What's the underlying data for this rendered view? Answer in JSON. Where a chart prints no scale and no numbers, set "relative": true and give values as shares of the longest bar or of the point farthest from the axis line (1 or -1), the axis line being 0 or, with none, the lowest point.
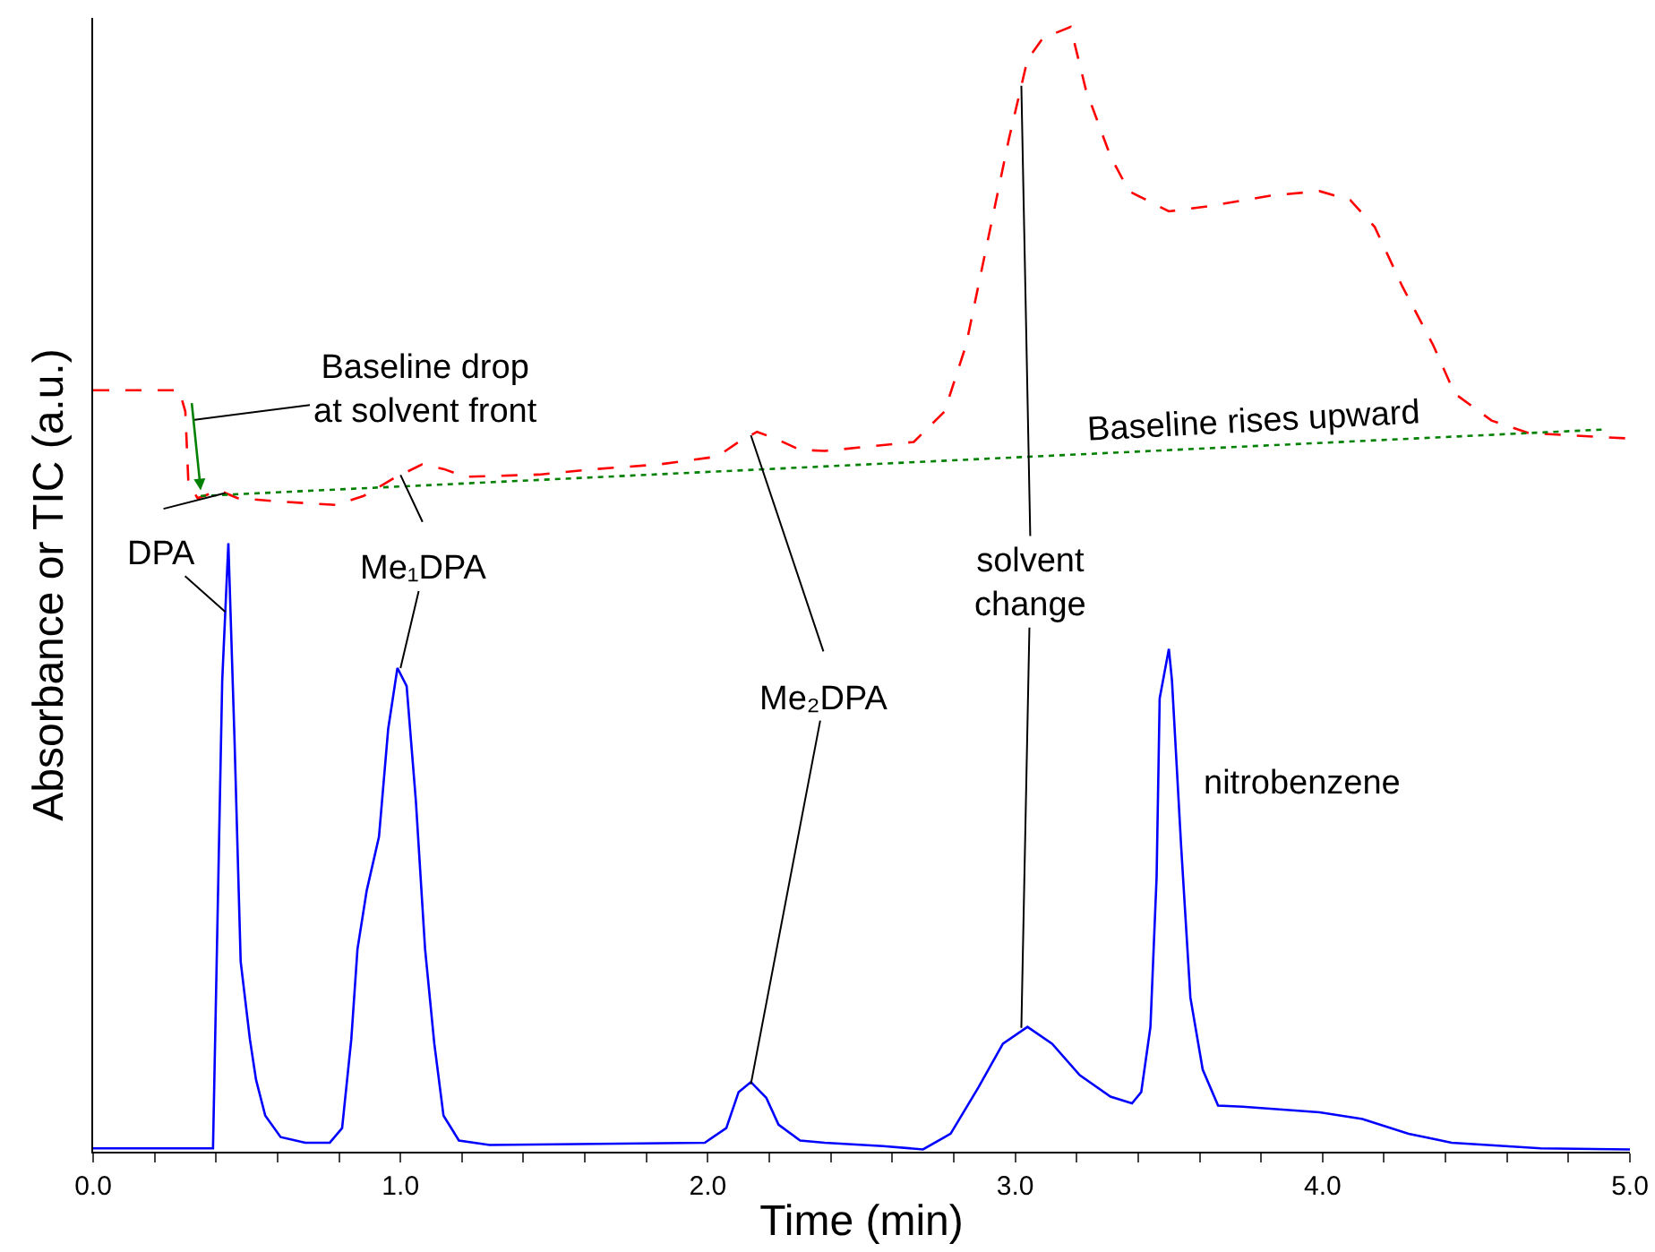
{
  "chart_data": {
    "type": "line",
    "relative": true,
    "xlabel": "Time (min)",
    "ylabel": "Absorbance or TIC (a.u.)",
    "xlim": [
      0,
      5
    ],
    "xticks": [
      {
        "value": 0,
        "label": "0.0"
      },
      {
        "value": 0.2,
        "label": null
      },
      {
        "value": 0.4,
        "label": null
      },
      {
        "value": 0.6,
        "label": null
      },
      {
        "value": 0.8,
        "label": null
      },
      {
        "value": 1,
        "label": "1.0"
      },
      {
        "value": 1.2,
        "label": null
      },
      {
        "value": 1.4,
        "label": null
      },
      {
        "value": 1.6,
        "label": null
      },
      {
        "value": 1.8,
        "label": null
      },
      {
        "value": 2,
        "label": "2.0"
      },
      {
        "value": 2.2,
        "label": null
      },
      {
        "value": 2.4,
        "label": null
      },
      {
        "value": 2.6,
        "label": null
      },
      {
        "value": 2.8,
        "label": null
      },
      {
        "value": 3,
        "label": "3.0"
      },
      {
        "value": 3.2,
        "label": null
      },
      {
        "value": 3.4,
        "label": null
      },
      {
        "value": 3.6,
        "label": null
      },
      {
        "value": 3.8,
        "label": null
      },
      {
        "value": 4,
        "label": "4.0"
      },
      {
        "value": 4.2,
        "label": null
      },
      {
        "value": 4.4,
        "label": null
      },
      {
        "value": 4.6,
        "label": null
      },
      {
        "value": 4.8,
        "label": null
      },
      {
        "value": 5,
        "label": "5.0"
      }
    ],
    "marker": "none",
    "series": [
      {
        "color": "#ff0000",
        "line_style": "dashed",
        "x": [
          0,
          0.28,
          0.3,
          0.31,
          0.34,
          0.41,
          0.47,
          0.61,
          0.79,
          0.88,
          0.98,
          1.07,
          1.14,
          1.21,
          1.45,
          1.64,
          1.84,
          2.03,
          2.1,
          2.16,
          2.22,
          2.3,
          2.38,
          2.67,
          2.77,
          2.84,
          2.9,
          2.98,
          3.04,
          3.09,
          3.18,
          3.23,
          3.31,
          3.37,
          3.5,
          3.64,
          3.83,
          3.99,
          4.09,
          4.17,
          4.26,
          4.36,
          4.43,
          4.55,
          4.67,
          5
        ],
        "values": [
          0.677,
          0.677,
          0.658,
          0.594,
          0.581,
          0.588,
          0.581,
          0.578,
          0.575,
          0.583,
          0.599,
          0.611,
          0.607,
          0.6,
          0.602,
          0.607,
          0.611,
          0.618,
          0.631,
          0.64,
          0.634,
          0.624,
          0.623,
          0.631,
          0.658,
          0.717,
          0.796,
          0.901,
          0.971,
          0.99,
          1,
          0.944,
          0.885,
          0.854,
          0.836,
          0.841,
          0.85,
          0.854,
          0.846,
          0.822,
          0.769,
          0.717,
          0.674,
          0.65,
          0.639,
          0.634
        ]
      },
      {
        "color": "#008000",
        "line_style": "dotted",
        "x": [
          0.35,
          4.91
        ],
        "values": [
          0.583,
          0.642
        ]
      },
      {
        "color": "#0000ff",
        "line_style": "solid",
        "x": [
          0,
          0.37,
          0.39,
          0.42,
          0.44,
          0.46,
          0.48,
          0.51,
          0.53,
          0.56,
          0.61,
          0.69,
          0.77,
          0.81,
          0.84,
          0.86,
          0.89,
          0.93,
          0.96,
          0.99,
          1.02,
          1.05,
          1.08,
          1.11,
          1.14,
          1.19,
          1.29,
          1.99,
          2.06,
          2.1,
          2.14,
          2.19,
          2.23,
          2.3,
          2.38,
          2.57,
          2.7,
          2.79,
          2.88,
          2.96,
          3.04,
          3.12,
          3.21,
          3.31,
          3.38,
          3.41,
          3.44,
          3.46,
          3.47,
          3.5,
          3.51,
          3.54,
          3.57,
          3.61,
          3.66,
          3.74,
          3.99,
          4.13,
          4.28,
          4.42,
          4.71,
          5
        ],
        "values": [
          0.003,
          0.003,
          0.003,
          0.419,
          0.541,
          0.366,
          0.169,
          0.1,
          0.064,
          0.032,
          0.013,
          0.008,
          0.008,
          0.021,
          0.1,
          0.18,
          0.232,
          0.28,
          0.376,
          0.43,
          0.414,
          0.312,
          0.18,
          0.096,
          0.032,
          0.01,
          0.006,
          0.008,
          0.021,
          0.053,
          0.062,
          0.048,
          0.024,
          0.01,
          0.008,
          0.005,
          0.002,
          0.016,
          0.057,
          0.096,
          0.111,
          0.096,
          0.068,
          0.049,
          0.043,
          0.053,
          0.111,
          0.244,
          0.403,
          0.447,
          0.419,
          0.271,
          0.137,
          0.073,
          0.041,
          0.04,
          0.035,
          0.029,
          0.016,
          0.008,
          0.003,
          0.002
        ]
      }
    ],
    "annotations": [
      "Baseline drop\nat solvent front",
      {
        "text": "DPA",
        "x": 0.43,
        "y": 0.48
      },
      {
        "text": "Me₁DPA",
        "x": 1.0,
        "y": 0.43
      },
      {
        "text": "Me₂DPA",
        "x": 2.14,
        "y": 0.06
      },
      {
        "text": "solvent\nchange",
        "x": 3.02,
        "y": 0.11
      },
      "nitrobenzene",
      "Baseline rises upward"
    ]
  }
}
